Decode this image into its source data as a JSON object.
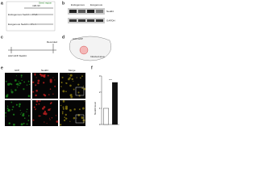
{
  "panels": {
    "a": {
      "label": "a",
      "mirna": "miR-93",
      "seed": "Seed region",
      "endogenous": "Endogenous Nedd4 mRNA",
      "exogenous": "Exogenous Nedd4 mRNA"
    },
    "b": {
      "label": "b",
      "group1": "Endogenous",
      "group2": "Exogenous",
      "row1": "Nedd4",
      "row2": "GAPDH"
    },
    "c": {
      "label": "c",
      "start": "AAV-GFP-Nedd4",
      "end": "Recorded"
    },
    "d": {
      "label": "d",
      "virus": "AAV-GFP",
      "area": "Infected area"
    },
    "e": {
      "label": "e",
      "col1": "GFP",
      "col2": "Nedd4",
      "col3": "Merge"
    },
    "f": {
      "label": "f"
    }
  },
  "chart_data": {
    "type": "bar",
    "y_label": "Nedd4 level",
    "values": [
      1,
      2.6
    ],
    "colors": [
      "#ffffff",
      "#111111"
    ],
    "significance": "***",
    "ylim": [
      0,
      3
    ],
    "yticks": [
      0,
      1,
      2,
      3
    ]
  }
}
